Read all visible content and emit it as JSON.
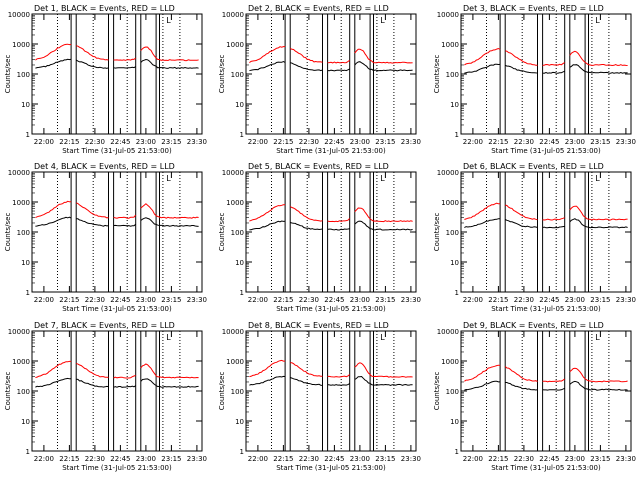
{
  "chart_data": [
    {
      "type": "line",
      "title": "Det 1, BLACK = Events, RED = LLD",
      "xlabel": "Start Time (31-Jul-05 21:53:00)",
      "ylabel": "Counts/sec",
      "yscale": "log",
      "ylim": [
        1,
        10000
      ],
      "xlim": [
        "21:53",
        "23:33"
      ],
      "x_ticks": [
        "22:00",
        "22:15",
        "22:30",
        "22:45",
        "23:00",
        "23:15",
        "23:30"
      ],
      "y_ticks": [
        "1",
        "10",
        "100",
        "1000",
        "10000"
      ],
      "series": [
        {
          "name": "Events",
          "color": "#000000",
          "base": 290
        },
        {
          "name": "LLD",
          "color": "#ff0000",
          "base": 290
        }
      ],
      "solid_markers": [
        "22:16",
        "22:19",
        "22:38",
        "22:41",
        "22:54",
        "22:57",
        "23:06",
        "23:08"
      ],
      "dotted_markers": [
        "22:08",
        "22:29",
        "22:49",
        "23:10",
        "23:20"
      ],
      "annotation": "L"
    },
    {
      "type": "line",
      "title": "Det 2, BLACK = Events, RED = LLD",
      "xlabel": "Start Time (31-Jul-05 21:53:00)",
      "ylabel": "Counts/sec",
      "yscale": "log",
      "ylim": [
        1,
        10000
      ],
      "xlim": [
        "21:53",
        "23:33"
      ],
      "x_ticks": [
        "22:00",
        "22:15",
        "22:30",
        "22:45",
        "23:00",
        "23:15",
        "23:30"
      ],
      "y_ticks": [
        "1",
        "10",
        "100",
        "1000",
        "10000"
      ],
      "series": [
        {
          "name": "Events",
          "color": "#000000",
          "base": 240
        },
        {
          "name": "LLD",
          "color": "#ff0000",
          "base": 240
        }
      ],
      "solid_markers": [
        "22:16",
        "22:19",
        "22:38",
        "22:41",
        "22:54",
        "22:57",
        "23:06",
        "23:08"
      ],
      "dotted_markers": [
        "22:08",
        "22:29",
        "22:49",
        "23:10",
        "23:20"
      ],
      "annotation": "L"
    },
    {
      "type": "line",
      "title": "Det 3, BLACK = Events, RED = LLD",
      "xlabel": "Start Time (31-Jul-05 21:53:00)",
      "ylabel": "Counts/sec",
      "yscale": "log",
      "ylim": [
        1,
        10000
      ],
      "xlim": [
        "21:53",
        "23:33"
      ],
      "x_ticks": [
        "22:00",
        "22:15",
        "22:30",
        "22:45",
        "23:00",
        "23:15",
        "23:30"
      ],
      "y_ticks": [
        "1",
        "10",
        "100",
        "1000",
        "10000"
      ],
      "series": [
        {
          "name": "Events",
          "color": "#000000",
          "base": 200
        },
        {
          "name": "LLD",
          "color": "#ff0000",
          "base": 200
        }
      ],
      "solid_markers": [
        "22:16",
        "22:19",
        "22:38",
        "22:41",
        "22:54",
        "22:57",
        "23:06",
        "23:08"
      ],
      "dotted_markers": [
        "22:08",
        "22:29",
        "22:49",
        "23:10",
        "23:20"
      ],
      "annotation": "L"
    },
    {
      "type": "line",
      "title": "Det 4, BLACK = Events, RED = LLD",
      "xlabel": "Start Time (31-Jul-05 21:53:00)",
      "ylabel": "Counts/sec",
      "yscale": "log",
      "ylim": [
        1,
        10000
      ],
      "xlim": [
        "21:53",
        "23:33"
      ],
      "x_ticks": [
        "22:00",
        "22:15",
        "22:30",
        "22:45",
        "23:00",
        "23:15",
        "23:30"
      ],
      "y_ticks": [
        "1",
        "10",
        "100",
        "1000",
        "10000"
      ],
      "series": [
        {
          "name": "Events",
          "color": "#000000",
          "base": 290
        },
        {
          "name": "LLD",
          "color": "#ff0000",
          "base": 300
        }
      ],
      "solid_markers": [
        "22:16",
        "22:19",
        "22:38",
        "22:41",
        "22:54",
        "22:57",
        "23:06",
        "23:08"
      ],
      "dotted_markers": [
        "22:08",
        "22:29",
        "22:49",
        "23:10",
        "23:20"
      ],
      "annotation": "L"
    },
    {
      "type": "line",
      "title": "Det 5, BLACK = Events, RED = LLD",
      "xlabel": "Start Time (31-Jul-05 21:53:00)",
      "ylabel": "Counts/sec",
      "yscale": "log",
      "ylim": [
        1,
        10000
      ],
      "xlim": [
        "21:53",
        "23:33"
      ],
      "x_ticks": [
        "22:00",
        "22:15",
        "22:30",
        "22:45",
        "23:00",
        "23:15",
        "23:30"
      ],
      "y_ticks": [
        "1",
        "10",
        "100",
        "1000",
        "10000"
      ],
      "series": [
        {
          "name": "Events",
          "color": "#000000",
          "base": 220
        },
        {
          "name": "LLD",
          "color": "#ff0000",
          "base": 230
        }
      ],
      "solid_markers": [
        "22:16",
        "22:19",
        "22:38",
        "22:41",
        "22:54",
        "22:57",
        "23:06",
        "23:08"
      ],
      "dotted_markers": [
        "22:08",
        "22:29",
        "22:49",
        "23:10",
        "23:20"
      ],
      "annotation": "L"
    },
    {
      "type": "line",
      "title": "Det 6, BLACK = Events, RED = LLD",
      "xlabel": "Start Time (31-Jul-05 21:53:00)",
      "ylabel": "Counts/sec",
      "yscale": "log",
      "ylim": [
        1,
        10000
      ],
      "xlim": [
        "21:53",
        "23:33"
      ],
      "x_ticks": [
        "22:00",
        "22:15",
        "22:30",
        "22:45",
        "23:00",
        "23:15",
        "23:30"
      ],
      "y_ticks": [
        "1",
        "10",
        "100",
        "1000",
        "10000"
      ],
      "series": [
        {
          "name": "Events",
          "color": "#000000",
          "base": 260
        },
        {
          "name": "LLD",
          "color": "#ff0000",
          "base": 260
        }
      ],
      "solid_markers": [
        "22:16",
        "22:19",
        "22:38",
        "22:41",
        "22:54",
        "22:57",
        "23:06",
        "23:08"
      ],
      "dotted_markers": [
        "22:08",
        "22:29",
        "22:49",
        "23:10",
        "23:20"
      ],
      "annotation": "L"
    },
    {
      "type": "line",
      "title": "Det 7, BLACK = Events, RED = LLD",
      "xlabel": "Start Time (31-Jul-05 21:53:00)",
      "ylabel": "Counts/sec",
      "yscale": "log",
      "ylim": [
        1,
        10000
      ],
      "xlim": [
        "21:53",
        "23:33"
      ],
      "x_ticks": [
        "22:00",
        "22:15",
        "22:30",
        "22:45",
        "23:00",
        "23:15",
        "23:30"
      ],
      "y_ticks": [
        "1",
        "10",
        "100",
        "1000",
        "10000"
      ],
      "series": [
        {
          "name": "Events",
          "color": "#000000",
          "base": 250
        },
        {
          "name": "LLD",
          "color": "#ff0000",
          "base": 280
        }
      ],
      "solid_markers": [
        "22:16",
        "22:19",
        "22:38",
        "22:41",
        "22:54",
        "22:57",
        "23:06",
        "23:08"
      ],
      "dotted_markers": [
        "22:08",
        "22:29",
        "22:49",
        "23:10",
        "23:20"
      ],
      "annotation": "L"
    },
    {
      "type": "line",
      "title": "Det 8, BLACK = Events, RED = LLD",
      "xlabel": "Start Time (31-Jul-05 21:53:00)",
      "ylabel": "Counts/sec",
      "yscale": "log",
      "ylim": [
        1,
        10000
      ],
      "xlim": [
        "21:53",
        "23:33"
      ],
      "x_ticks": [
        "22:00",
        "22:15",
        "22:30",
        "22:45",
        "23:00",
        "23:15",
        "23:30"
      ],
      "y_ticks": [
        "1",
        "10",
        "100",
        "1000",
        "10000"
      ],
      "series": [
        {
          "name": "Events",
          "color": "#000000",
          "base": 290
        },
        {
          "name": "LLD",
          "color": "#ff0000",
          "base": 300
        }
      ],
      "solid_markers": [
        "22:16",
        "22:19",
        "22:38",
        "22:41",
        "22:54",
        "22:57",
        "23:06",
        "23:08"
      ],
      "dotted_markers": [
        "22:08",
        "22:29",
        "22:49",
        "23:10",
        "23:20"
      ],
      "annotation": "L"
    },
    {
      "type": "line",
      "title": "Det 9, BLACK = Events, RED = LLD",
      "xlabel": "Start Time (31-Jul-05 21:53:00)",
      "ylabel": "Counts/sec",
      "yscale": "log",
      "ylim": [
        1,
        10000
      ],
      "xlim": [
        "21:53",
        "23:33"
      ],
      "x_ticks": [
        "22:00",
        "22:15",
        "22:30",
        "22:45",
        "23:00",
        "23:15",
        "23:30"
      ],
      "y_ticks": [
        "1",
        "10",
        "100",
        "1000",
        "10000"
      ],
      "series": [
        {
          "name": "Events",
          "color": "#000000",
          "base": 200
        },
        {
          "name": "LLD",
          "color": "#ff0000",
          "base": 210
        }
      ],
      "solid_markers": [
        "22:16",
        "22:19",
        "22:38",
        "22:41",
        "22:54",
        "22:57",
        "23:06",
        "23:08"
      ],
      "dotted_markers": [
        "22:08",
        "22:29",
        "22:49",
        "23:10",
        "23:20"
      ],
      "annotation": "L"
    }
  ]
}
